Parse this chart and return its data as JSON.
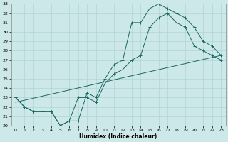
{
  "xlabel": "Humidex (Indice chaleur)",
  "xlim": [
    -0.5,
    23.5
  ],
  "ylim": [
    20,
    33
  ],
  "xticks": [
    0,
    1,
    2,
    3,
    4,
    5,
    6,
    7,
    8,
    9,
    10,
    11,
    12,
    13,
    14,
    15,
    16,
    17,
    18,
    19,
    20,
    21,
    22,
    23
  ],
  "yticks": [
    20,
    21,
    22,
    23,
    24,
    25,
    26,
    27,
    28,
    29,
    30,
    31,
    32,
    33
  ],
  "bg_color": "#cce8e8",
  "line_color": "#1a6660",
  "grid_color": "#b0d4d4",
  "line1_x": [
    0,
    1,
    2,
    3,
    4,
    5,
    6,
    7,
    8,
    9,
    10,
    11,
    12,
    13,
    14,
    15,
    16,
    17,
    18,
    19,
    20,
    21,
    22,
    23
  ],
  "line1_y": [
    23,
    22,
    21.5,
    21.5,
    21.5,
    20,
    20.5,
    20.5,
    23.5,
    23,
    25,
    26.5,
    27,
    31,
    31,
    32.5,
    33,
    32.5,
    32,
    31.5,
    30.5,
    29,
    28.5,
    27.5
  ],
  "line2_x": [
    0,
    1,
    2,
    3,
    4,
    5,
    6,
    7,
    8,
    9,
    10,
    11,
    12,
    13,
    14,
    15,
    16,
    17,
    18,
    19,
    20,
    21,
    22,
    23
  ],
  "line2_y": [
    23,
    22,
    21.5,
    21.5,
    21.5,
    20,
    20.5,
    23.0,
    23.0,
    22.5,
    24.5,
    25.5,
    26,
    27,
    27.5,
    30.5,
    31.5,
    32,
    31,
    30.5,
    28.5,
    28.0,
    27.5,
    27.0
  ],
  "line3_x": [
    0,
    23
  ],
  "line3_y": [
    22.5,
    27.5
  ]
}
